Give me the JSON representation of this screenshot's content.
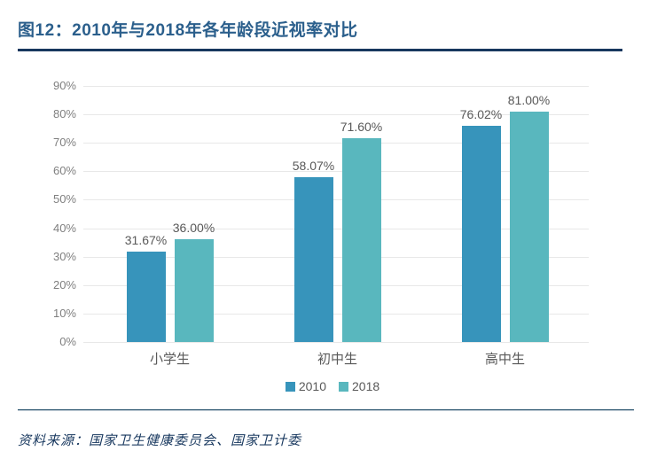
{
  "header": {
    "title": "图12：2010年与2018年各年龄段近视率对比",
    "title_color": "#2B5F8C",
    "rule_color": "#17375E"
  },
  "footer": {
    "source": "资料来源：国家卫生健康委员会、国家卫计委"
  },
  "chart_data": {
    "type": "bar",
    "title": "图12：2010年与2018年各年龄段近视率对比",
    "categories": [
      "小学生",
      "初中生",
      "高中生"
    ],
    "series": [
      {
        "name": "2010",
        "color": "#3794BB",
        "values": [
          31.67,
          58.07,
          76.02
        ],
        "labels": [
          "31.67%",
          "58.07%",
          "76.02%"
        ]
      },
      {
        "name": "2018",
        "color": "#59B7BE",
        "values": [
          36.0,
          71.6,
          81.0
        ],
        "labels": [
          "36.00%",
          "71.60%",
          "81.00%"
        ]
      }
    ],
    "xlabel": "",
    "ylabel": "",
    "ylim": [
      0,
      90
    ],
    "ytick_step": 10,
    "ytick_suffix": "%",
    "grid": true,
    "legend_position": "bottom",
    "axis_label_color": "#7F7F7F",
    "data_label_color": "#595959",
    "gridline_color": "#E8E8E8"
  }
}
